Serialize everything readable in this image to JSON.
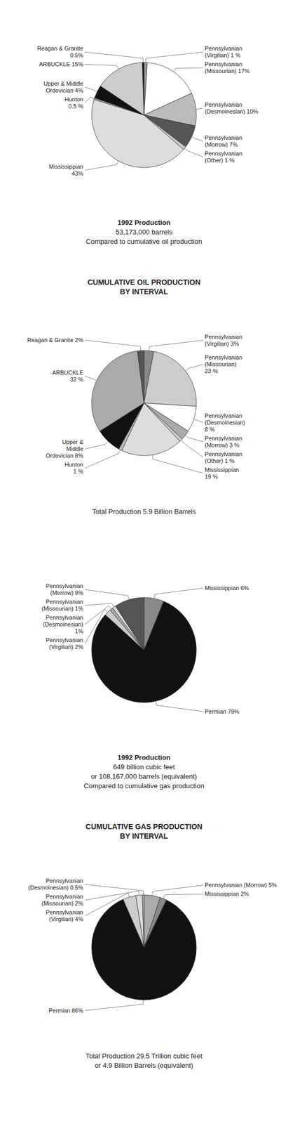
{
  "chart_data": [
    {
      "type": "pie",
      "categories": [
        "Pennsylvanian\n(Virgilian) 1 %",
        "Pennsylvanian\n(Missourian) 17%",
        "Pennsylvanian\n(Desmoinesian) 10%",
        "Pennsylvanian\n(Morrow) 7%",
        "Pennsylvanian\n(Other)  1 %",
        "Mississippian\n43%",
        "Hunton\n0.5 %",
        "Upper & Middle\nOrdovician 4%",
        "ARBUCKLE 15%",
        "Reagan & Granite\n0.5%"
      ],
      "values": [
        1,
        17,
        10,
        7,
        1,
        43,
        0.5,
        4,
        15,
        0.5
      ],
      "colors": [
        "#999999",
        "#ffffff",
        "#bbbbbb",
        "#555555",
        "#cccccc",
        "#dddddd",
        "#aaaaaa",
        "#111111",
        "#cccccc",
        "#111111"
      ],
      "annotations": [
        "1992 Production",
        "53,173,000 barrels",
        "Compared to cumulative oil production"
      ]
    },
    {
      "type": "pie",
      "title": "CUMULATIVE OIL PRODUCTION\nBY INTERVAL",
      "subtitle": "Total Production 5.9 Billion Barrels",
      "categories": [
        "Pennsylvanian\n(Virgilian) 3%",
        "Pennsylvanian\n(Missourian)\n23 %",
        "Pennsylvanian\n(Desmoinesian)\n8 %",
        "Pennsylvanian\n(Morrow) 3 %",
        "Pennsylvanian\n(Other) 1 %",
        "Mississippian\n19 %",
        "Hunton\n1 %",
        "Upper &\nMiddle\nOrdovician 8%",
        "ARBUCKLE\n32 %",
        "Reagan & Granite 2%"
      ],
      "values": [
        3,
        23,
        8,
        3,
        1,
        19,
        1,
        8,
        32,
        2
      ],
      "colors": [
        "#888888",
        "#cccccc",
        "#ffffff",
        "#aaaaaa",
        "#cccccc",
        "#dddddd",
        "#bbbbbb",
        "#111111",
        "#aaaaaa",
        "#555555"
      ]
    },
    {
      "type": "pie",
      "categories": [
        "Mississippian 6%",
        "Permian 79%",
        "Pennsylvanian\n(Virgilian) 2%",
        "Pennsylvanian\n(Desmoinesian)\n1%",
        "Pennsylvanian\n(Missourian) 1%",
        "Pennsylvanian\n(Morrow) 9%"
      ],
      "values": [
        6,
        79,
        2,
        1,
        1,
        9
      ],
      "colors": [
        "#888888",
        "#111111",
        "#cccccc",
        "#aaaaaa",
        "#dddddd",
        "#555555"
      ],
      "annotations": [
        "1992 Production",
        "649 billion cubic feet",
        "or 108,167,000 barrels (equivalent)",
        "Compared to cumulative gas production"
      ]
    },
    {
      "type": "pie",
      "title": "CUMULATIVE GAS PRODUCTION\nBY INTERVAL",
      "subtitle": "Total Production 29.5 Trillion cubic feet\nor 4.9 Billion Barrels (equivalent)",
      "categories": [
        "Pennsylvanian (Morrow) 5%",
        "Mississippian 2%",
        "Permian 86%",
        "Pennsylvanian\n(Virgilian) 4%",
        "Pennsylvanian\n(Missourian) 2%",
        "Pennsylvanian\n(Desmoinesian) 0.5%"
      ],
      "values": [
        5,
        2,
        86,
        4,
        2,
        0.5
      ],
      "colors": [
        "#aaaaaa",
        "#888888",
        "#111111",
        "#cccccc",
        "#dddddd",
        "#bbbbbb"
      ]
    }
  ]
}
